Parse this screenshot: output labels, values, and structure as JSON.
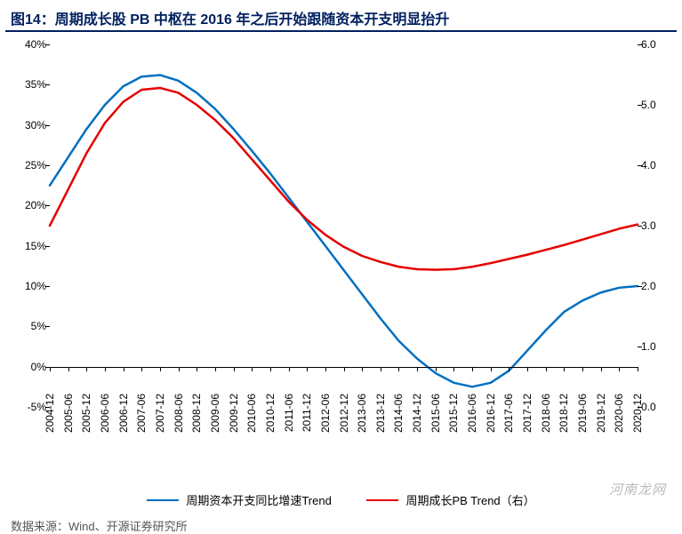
{
  "title": "图14：周期成长股 PB 中枢在 2016 年之后开始跟随资本开支明显抬升",
  "source_label": "数据来源：Wind、开源证券研究所",
  "watermark": "河南龙网",
  "chart": {
    "type": "line",
    "background_color": "#ffffff",
    "title_color": "#002060",
    "axis_color": "#000000",
    "x_labels": [
      "2004-12",
      "2005-06",
      "2005-12",
      "2006-06",
      "2006-12",
      "2007-06",
      "2007-12",
      "2008-06",
      "2008-12",
      "2009-06",
      "2009-12",
      "2010-06",
      "2010-12",
      "2011-06",
      "2011-12",
      "2012-06",
      "2012-12",
      "2013-06",
      "2013-12",
      "2014-06",
      "2014-12",
      "2015-06",
      "2015-12",
      "2016-06",
      "2016-12",
      "2017-06",
      "2017-12",
      "2018-06",
      "2018-12",
      "2019-06",
      "2019-12",
      "2020-06",
      "2020-12"
    ],
    "y_left": {
      "min": -5,
      "max": 40,
      "step": 5,
      "suffix": "%"
    },
    "y_right": {
      "min": 0,
      "max": 6,
      "step": 1,
      "format": "0.0"
    },
    "series": [
      {
        "name": "周期资本开支同比增速Trend",
        "axis": "left",
        "color": "#0070c0",
        "width": 2.5,
        "data": [
          22.5,
          26,
          29.5,
          32.5,
          34.8,
          36,
          36.2,
          35.5,
          34,
          32,
          29.5,
          26.8,
          24,
          21,
          18,
          15,
          12,
          9,
          6,
          3.2,
          1,
          -0.8,
          -2,
          -2.5,
          -2,
          -0.5,
          2,
          4.5,
          6.8,
          8.2,
          9.2,
          9.8,
          10
        ]
      },
      {
        "name": "周期成长PB Trend（右）",
        "axis": "right",
        "color": "#e60000",
        "width": 2.5,
        "data": [
          3.0,
          3.6,
          4.2,
          4.7,
          5.05,
          5.25,
          5.28,
          5.2,
          5.0,
          4.75,
          4.45,
          4.1,
          3.75,
          3.4,
          3.1,
          2.85,
          2.65,
          2.5,
          2.4,
          2.32,
          2.28,
          2.27,
          2.28,
          2.32,
          2.38,
          2.45,
          2.52,
          2.6,
          2.68,
          2.77,
          2.86,
          2.95,
          3.02
        ]
      }
    ],
    "legend": [
      {
        "label": "周期资本开支同比增速Trend",
        "color": "#0070c0"
      },
      {
        "label": "周期成长PB Trend（右）",
        "color": "#e60000"
      }
    ]
  }
}
